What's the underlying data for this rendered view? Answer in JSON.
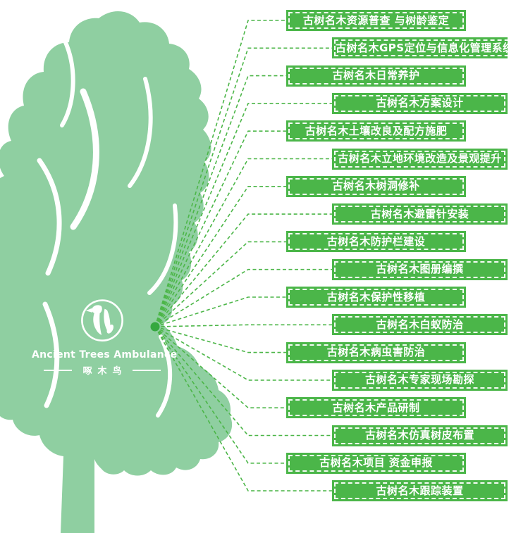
{
  "logo": {
    "title": "Ancient Trees Ambulance",
    "subtitle": "啄木鸟",
    "icon": "woodpecker-icon"
  },
  "colors": {
    "tree_green": "#8fcfa1",
    "box_green": "#4bb649",
    "line_green": "#4cb648",
    "hub_dot_green": "#35a83f",
    "text_white": "#ffffff"
  },
  "services": [
    {
      "label": "古树名木资源普查 与树龄鉴定",
      "indent": false
    },
    {
      "label": "古树名木GPS定位与信息化管理系统开发",
      "indent": true
    },
    {
      "label": "古树名木日常养护",
      "indent": false
    },
    {
      "label": "古树名木方案设计",
      "indent": true
    },
    {
      "label": "古树名木土壤改良及配方施肥",
      "indent": false
    },
    {
      "label": "古树名木立地环境改造及景观提升",
      "indent": true
    },
    {
      "label": "古树名木树洞修补",
      "indent": false
    },
    {
      "label": "古树名木避雷针安装",
      "indent": true
    },
    {
      "label": "古树名木防护栏建设",
      "indent": false
    },
    {
      "label": "古树名木图册编撰",
      "indent": true
    },
    {
      "label": "古树名木保护性移植",
      "indent": false
    },
    {
      "label": "古树名木白蚁防治",
      "indent": true
    },
    {
      "label": "古树名木病虫害防治",
      "indent": false
    },
    {
      "label": "古树名木专家现场勘探",
      "indent": true
    },
    {
      "label": "古树名木产品研制",
      "indent": false
    },
    {
      "label": "古树名木仿真树皮布置",
      "indent": true
    },
    {
      "label": "古树名木项目 资金申报",
      "indent": false
    },
    {
      "label": "古树名木跟踪装置",
      "indent": true
    }
  ]
}
